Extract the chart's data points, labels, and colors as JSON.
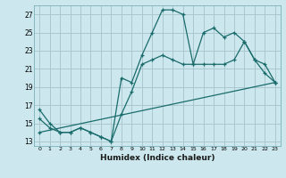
{
  "xlabel": "Humidex (Indice chaleur)",
  "bg_color": "#cce8ee",
  "grid_color": "#aac8d0",
  "line_color": "#1a6b6b",
  "xlim": [
    -0.5,
    23.5
  ],
  "ylim": [
    12.5,
    28.0
  ],
  "xticks": [
    0,
    1,
    2,
    3,
    4,
    5,
    6,
    7,
    8,
    9,
    10,
    11,
    12,
    13,
    14,
    15,
    16,
    17,
    18,
    19,
    20,
    21,
    22,
    23
  ],
  "yticks": [
    13,
    15,
    17,
    19,
    21,
    23,
    25,
    27
  ],
  "line1_x": [
    0,
    1,
    2,
    3,
    4,
    5,
    6,
    7,
    8,
    9,
    10,
    11,
    12,
    13,
    14,
    15,
    16,
    17,
    18,
    19,
    20,
    21,
    22,
    23
  ],
  "line1_y": [
    16.5,
    15.0,
    14.0,
    14.0,
    14.5,
    14.0,
    13.5,
    13.0,
    20.0,
    19.5,
    22.5,
    25.0,
    27.5,
    27.5,
    27.0,
    21.5,
    25.0,
    25.5,
    24.5,
    25.0,
    24.0,
    22.0,
    20.5,
    19.5
  ],
  "line2_x": [
    0,
    1,
    2,
    3,
    4,
    5,
    6,
    7,
    8,
    9,
    10,
    11,
    12,
    13,
    14,
    15,
    16,
    17,
    18,
    19,
    20,
    21,
    22,
    23
  ],
  "line2_y": [
    15.5,
    14.5,
    14.0,
    14.0,
    14.5,
    14.0,
    13.5,
    13.0,
    16.0,
    18.5,
    21.5,
    22.0,
    22.5,
    22.0,
    21.5,
    21.5,
    21.5,
    21.5,
    21.5,
    22.0,
    24.0,
    22.0,
    21.5,
    19.5
  ],
  "line3_x": [
    0,
    23
  ],
  "line3_y": [
    14.0,
    19.5
  ]
}
